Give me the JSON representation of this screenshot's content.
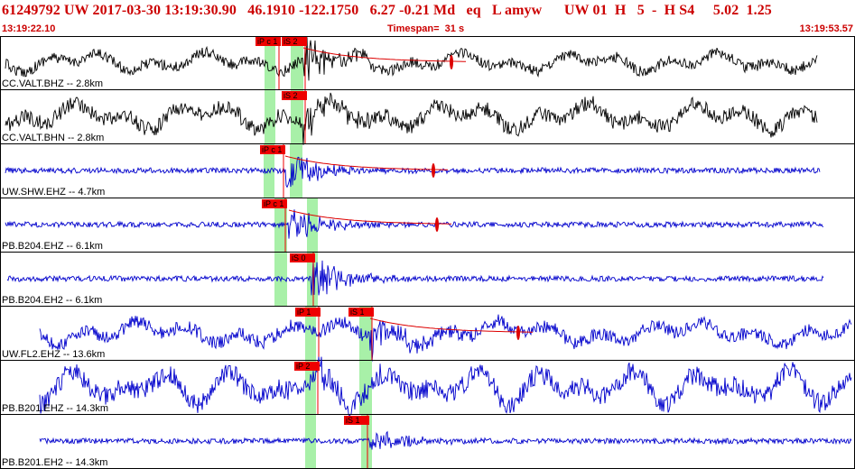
{
  "header": {
    "title": "61249792 UW 2017-03-30 13:19:30.90   46.1910 -122.1750   6.27 -0.21 Md   eq   L amyw      UW 01  H   5  -  H S4     5.02  1.25",
    "start_time": "13:19:22.10",
    "timespan": "Timespan=  31 s",
    "end_time": "13:19:53.57"
  },
  "colors": {
    "header_text": "#cc0000",
    "trace_black": "#000000",
    "trace_blue": "#0000cc",
    "pick_fill": "#ee0000",
    "green_band": "#a8f0a8",
    "coda_red": "#dd0000"
  },
  "traces": [
    {
      "label": "CC.VALT.BHZ -- 2.8km",
      "color": "black",
      "lf": 1.0,
      "hf": 0.25,
      "amp": 10,
      "burst": 28,
      "picks": [
        {
          "label": "iP c 1"
        },
        {
          "label": "iS 2"
        }
      ],
      "coda": true
    },
    {
      "label": "CC.VALT.BHN -- 2.8km",
      "color": "black",
      "lf": 1.0,
      "hf": 0.2,
      "amp": 14,
      "burst": 20,
      "picks": [
        {
          "label": "iS 2"
        }
      ],
      "coda": false
    },
    {
      "label": "UW.SHW.EHZ -- 4.7km",
      "color": "blue",
      "lf": 0,
      "hf": 0.12,
      "amp": 3,
      "burst": 26,
      "picks": [
        {
          "label": "iP c 1"
        }
      ],
      "coda": true
    },
    {
      "label": "PB.B204.EHZ -- 6.1km",
      "color": "blue",
      "lf": 0,
      "hf": 0.15,
      "amp": 3,
      "burst": 22,
      "picks": [
        {
          "label": "iP c 1"
        }
      ],
      "coda": true
    },
    {
      "label": "PB.B204.EH2 -- 6.1km",
      "color": "blue",
      "lf": 0,
      "hf": 0.15,
      "amp": 3,
      "burst": 26,
      "picks": [
        {
          "label": "iS 0"
        }
      ],
      "coda": false
    },
    {
      "label": "UW.FL2.EHZ -- 13.6km",
      "color": "blue",
      "lf": 0.7,
      "hf": 0.35,
      "amp": 12,
      "burst": 24,
      "picks": [
        {
          "label": "iP 1"
        },
        {
          "label": "iS 1"
        }
      ],
      "coda": true
    },
    {
      "label": "PB.B201.EHZ -- 14.3km",
      "color": "blue",
      "lf": 1.6,
      "hf": 0.2,
      "amp": 18,
      "burst": 22,
      "picks": [
        {
          "label": "iP 2"
        }
      ],
      "coda": false
    },
    {
      "label": "PB.B201.EH2 -- 14.3km",
      "color": "blue",
      "lf": 0,
      "hf": 0.15,
      "amp": 3,
      "burst": 14,
      "picks": [
        {
          "label": "iS 1"
        }
      ],
      "coda": false
    }
  ]
}
